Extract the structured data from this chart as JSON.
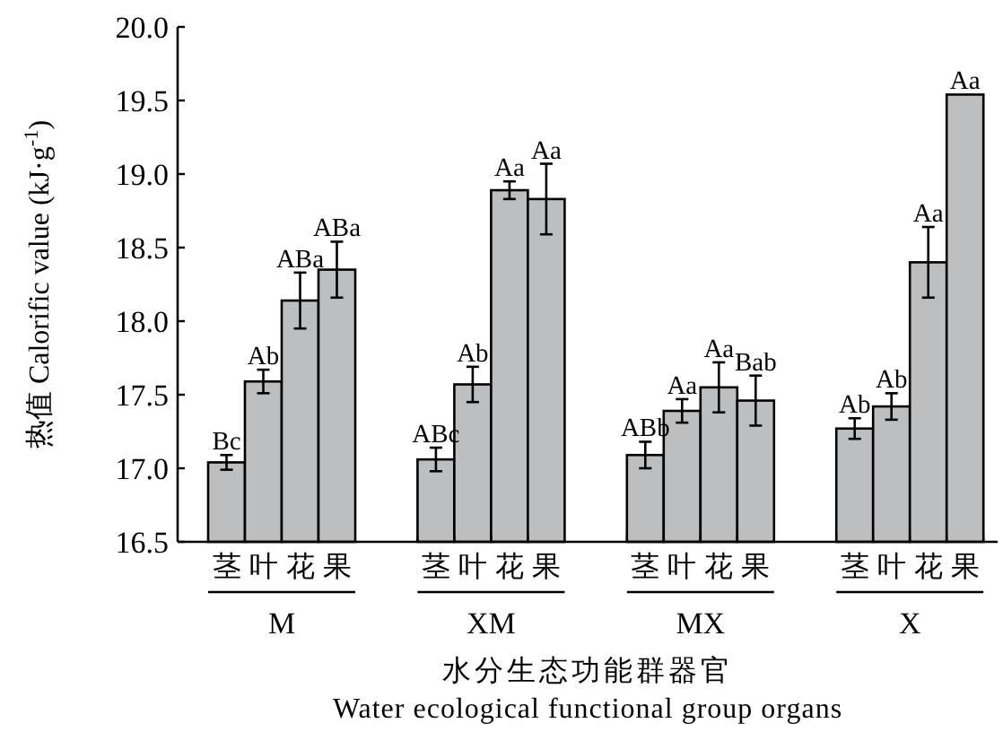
{
  "chart_data": {
    "type": "bar",
    "ylabel": "热值 Calorific value (kJ·g$^{-1}$)",
    "xlabel": "水分生态功能群器官",
    "annotations": [
      "M",
      "XM",
      "MX",
      "X",
      "Water ecological functional group organs"
    ],
    "categories": [
      "茎",
      "叶",
      "花",
      "果",
      "茎",
      "叶",
      "花",
      "果",
      "茎",
      "叶",
      "花",
      "果",
      "茎",
      "叶",
      "花",
      "果"
    ],
    "values": [
      17.04,
      17.59,
      18.14,
      18.35,
      17.06,
      17.57,
      18.89,
      18.83,
      17.09,
      17.39,
      17.55,
      17.46,
      17.27,
      17.42,
      18.4,
      19.54
    ],
    "errors": [
      0.05,
      0.08,
      0.19,
      0.19,
      0.08,
      0.12,
      0.06,
      0.24,
      0.09,
      0.08,
      0.17,
      0.17,
      0.07,
      0.09,
      0.24,
      null
    ],
    "value_labels": [
      "Bc",
      "Ab",
      "ABa",
      "ABa",
      "ABc",
      "Ab",
      "Aa",
      "Aa",
      "ABb",
      "Aa",
      "Aa",
      "Bab",
      "Ab",
      "Ab",
      "Aa",
      "Aa"
    ],
    "color": "#bcbec0",
    "ylim": [
      16.5,
      20.0
    ],
    "yticks": [
      16.5,
      {
        "value": 17,
        "label": "17.0"
      },
      17.5,
      {
        "value": 18,
        "label": "18.0"
      },
      18.5,
      {
        "value": 19,
        "label": "19.0"
      },
      19.5,
      {
        "value": 20,
        "label": "20.0"
      }
    ]
  }
}
